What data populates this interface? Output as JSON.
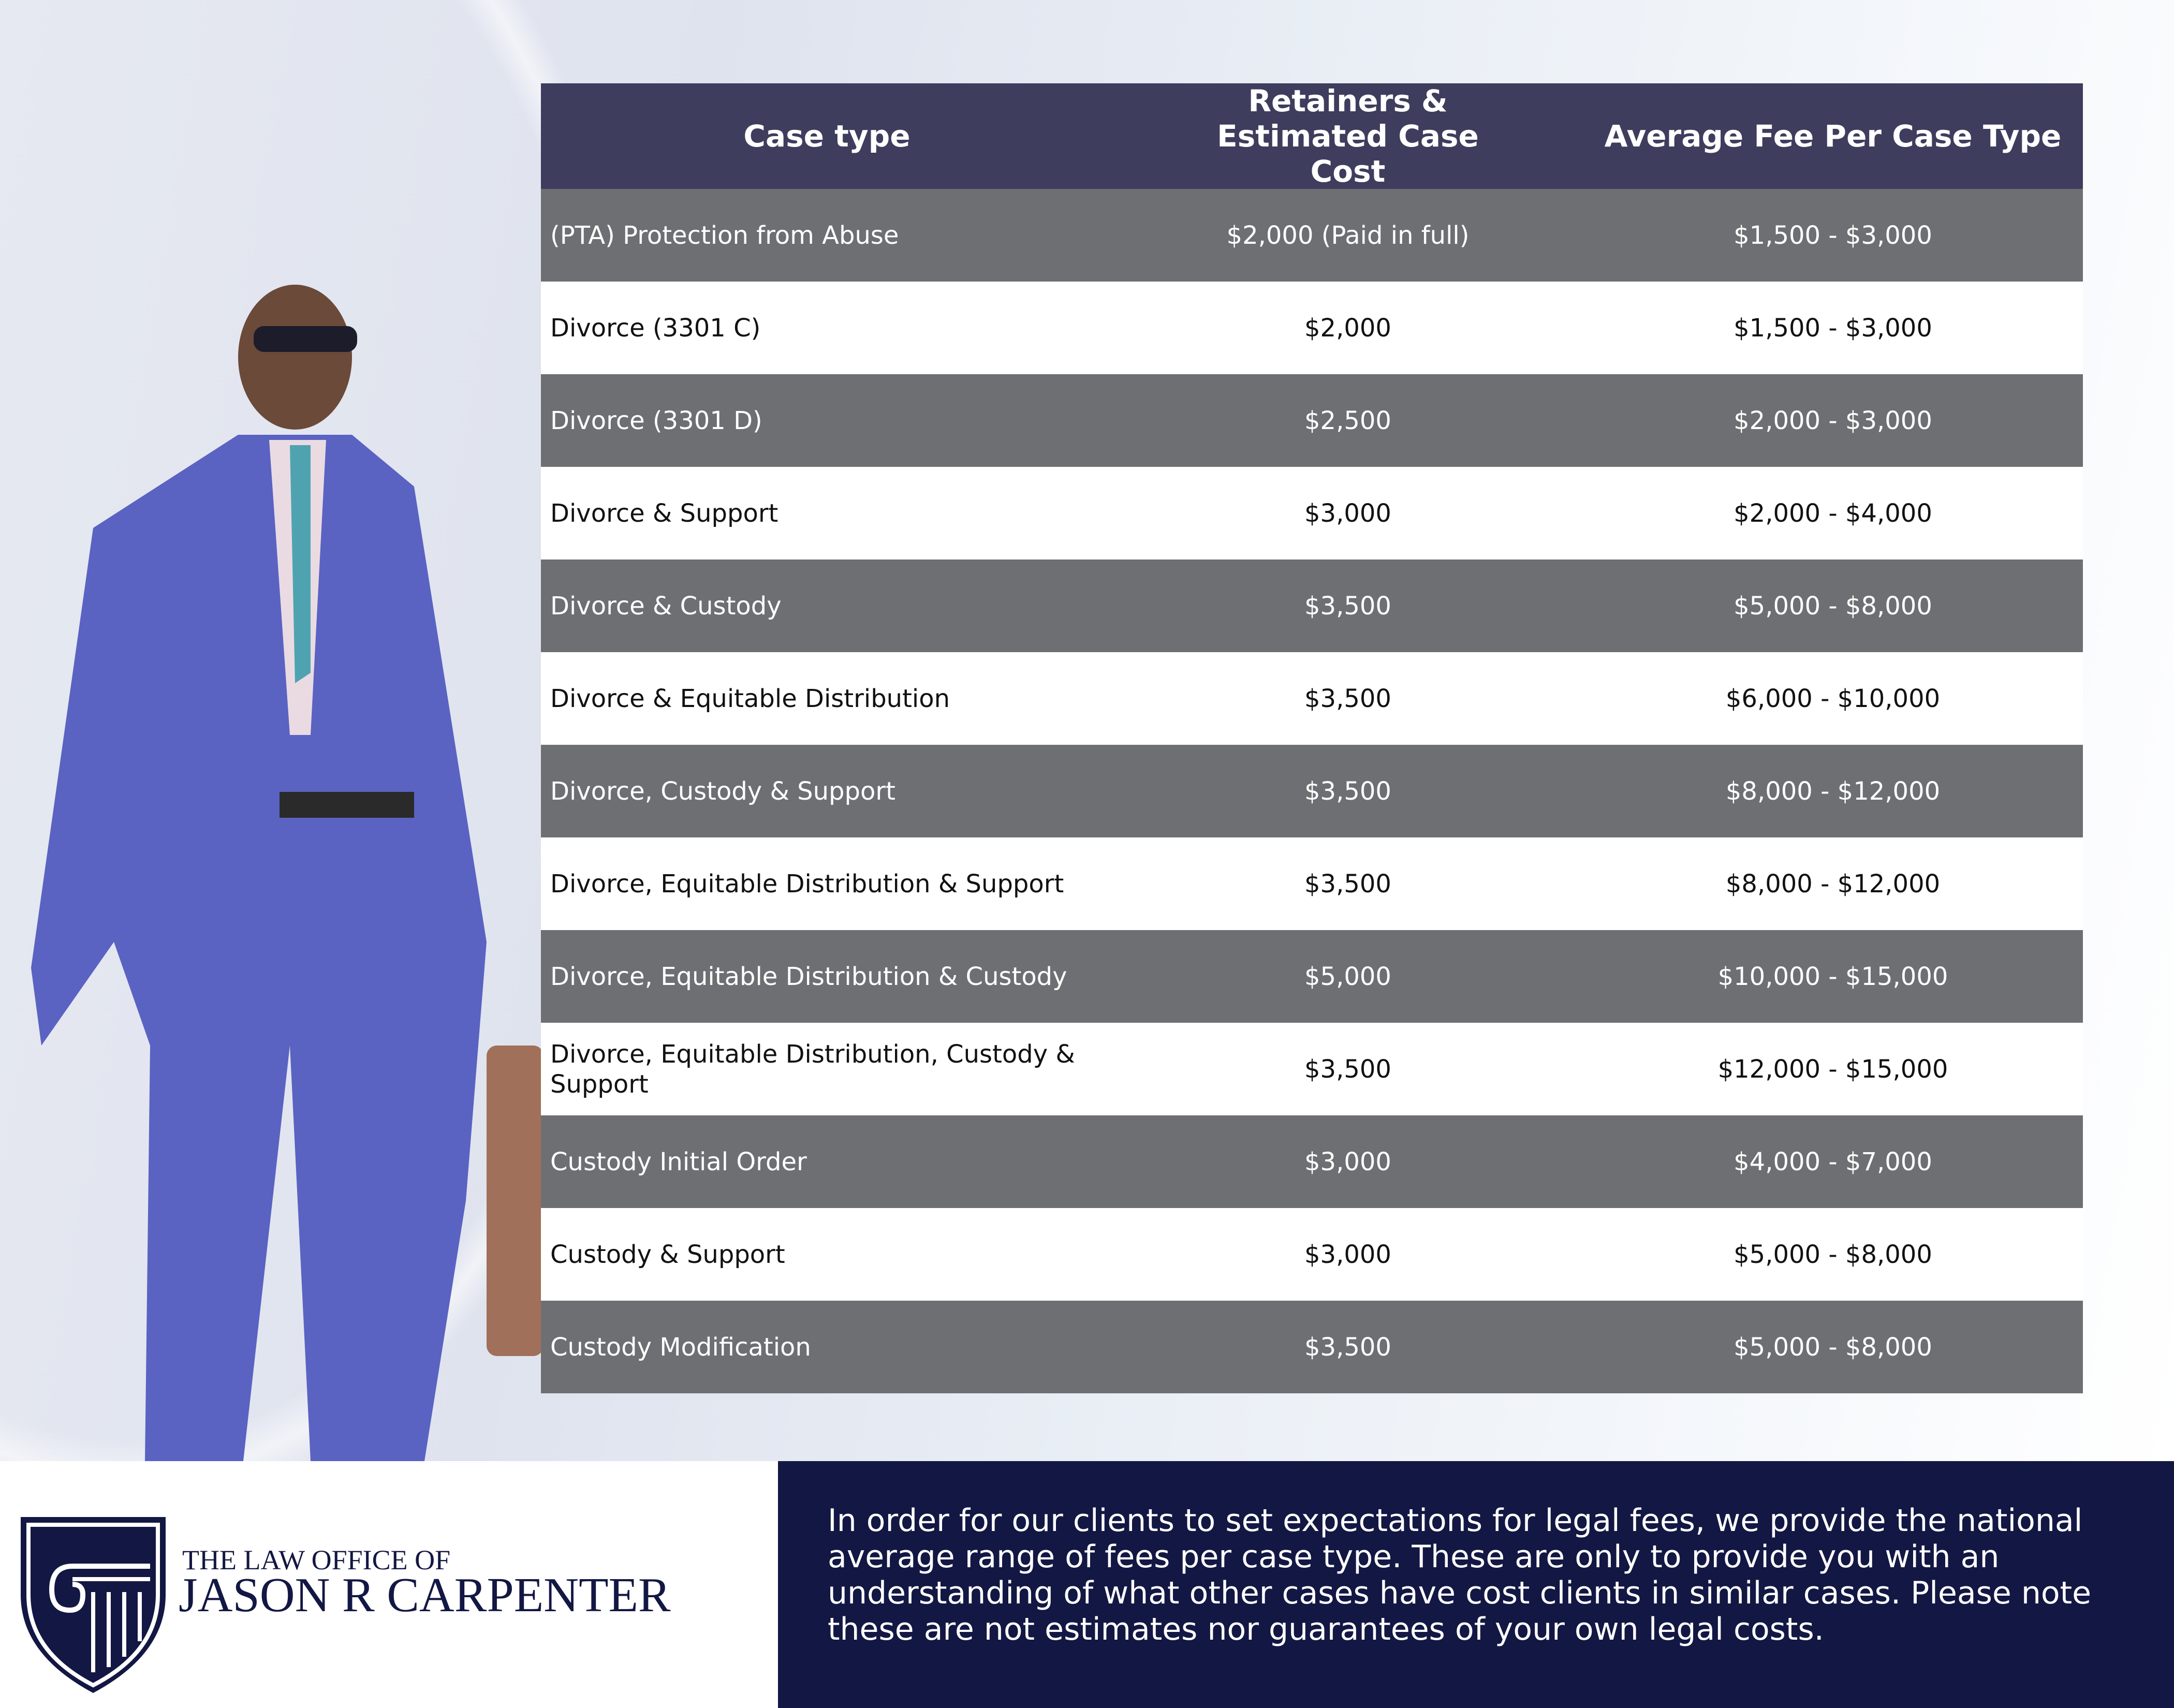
{
  "table": {
    "headers": [
      "Case type",
      "Retainers & Estimated Case Cost",
      "Average Fee Per Case Type"
    ],
    "rows": [
      {
        "case_type": "(PTA) Protection from Abuse",
        "retainer": "$2,000  (Paid in full)",
        "average_fee": "$1,500 - $3,000"
      },
      {
        "case_type": "Divorce (3301 C)",
        "retainer": "$2,000",
        "average_fee": "$1,500 - $3,000"
      },
      {
        "case_type": "Divorce (3301 D)",
        "retainer": "$2,500",
        "average_fee": "$2,000 - $3,000"
      },
      {
        "case_type": "Divorce & Support",
        "retainer": "$3,000",
        "average_fee": "$2,000 - $4,000"
      },
      {
        "case_type": "Divorce & Custody",
        "retainer": "$3,500",
        "average_fee": "$5,000 - $8,000"
      },
      {
        "case_type": "Divorce & Equitable Distribution",
        "retainer": "$3,500",
        "average_fee": "$6,000 - $10,000"
      },
      {
        "case_type": "Divorce, Custody & Support",
        "retainer": "$3,500",
        "average_fee": "$8,000 - $12,000"
      },
      {
        "case_type": "Divorce, Equitable Distribution & Support",
        "retainer": "$3,500",
        "average_fee": "$8,000 - $12,000"
      },
      {
        "case_type": "Divorce, Equitable Distribution & Custody",
        "retainer": "$5,000",
        "average_fee": "$10,000 - $15,000"
      },
      {
        "case_type": "Divorce, Equitable Distribution, Custody & Support",
        "retainer": "$3,500",
        "average_fee": "$12,000 - $15,000"
      },
      {
        "case_type": "Custody Initial Order",
        "retainer": "$3,000",
        "average_fee": "$4,000 - $7,000"
      },
      {
        "case_type": "Custody & Support",
        "retainer": "$3,000",
        "average_fee": "$5,000 - $8,000"
      },
      {
        "case_type": "Custody Modification",
        "retainer": "$3,500",
        "average_fee": "$5,000 - $8,000"
      }
    ]
  },
  "logo": {
    "line1": "THE LAW OFFICE OF",
    "line2": "JASON R CARPENTER"
  },
  "disclaimer": "In order for our clients to set expectations for legal fees, we provide the national average range of fees per case type. These are only to provide you with an understanding of what other cases have cost clients in similar cases. Please note these are not estimates nor guarantees of your own legal costs.",
  "colors": {
    "header": "#3e3d5e",
    "dark_row": "#6e6f72",
    "navy": "#131743"
  }
}
